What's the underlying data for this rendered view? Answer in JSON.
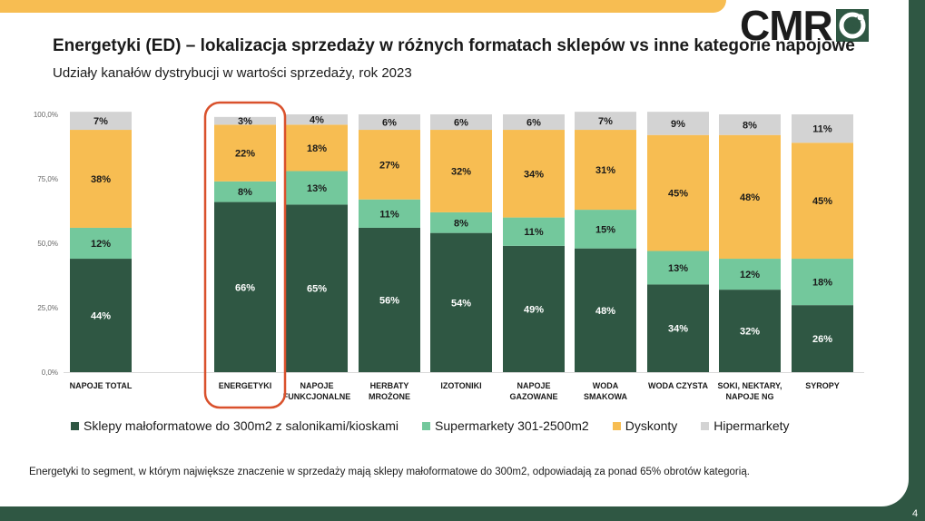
{
  "header": {
    "title": "Energetyki (ED) – lokalizacja sprzedaży w różnych formatach sklepów vs inne kategorie napojowe",
    "subtitle": "Udziały kanałów dystrybucji w wartości sprzedaży, rok 2023"
  },
  "logo": {
    "text": "CMR"
  },
  "chart_data": {
    "type": "bar",
    "stacked": true,
    "percent": true,
    "categories": [
      "NAPOJE TOTAL",
      "ENERGETYKI",
      "NAPOJE FUNKCJONALNE",
      "HERBATY MROŻONE",
      "IZOTONIKI",
      "NAPOJE GAZOWANE",
      "WODA SMAKOWA",
      "WODA CZYSTA",
      "SOKI, NEKTARY, NAPOJE NG",
      "SYROPY"
    ],
    "category_lines": [
      [
        "NAPOJE TOTAL"
      ],
      [
        "ENERGETYKI"
      ],
      [
        "NAPOJE",
        "FUNKCJONALNE"
      ],
      [
        "HERBATY",
        "MROŻONE"
      ],
      [
        "IZOTONIKI"
      ],
      [
        "NAPOJE",
        "GAZOWANE"
      ],
      [
        "WODA",
        "SMAKOWA"
      ],
      [
        "WODA CZYSTA"
      ],
      [
        "SOKI, NEKTARY,",
        "NAPOJE NG"
      ],
      [
        "SYROPY"
      ]
    ],
    "series": [
      {
        "name": "Sklepy małoformatowe do 300m2 z salonikami/kioskami",
        "color": "#2f5743",
        "label_color": "#ffffff",
        "values": [
          44,
          66,
          65,
          56,
          54,
          49,
          48,
          34,
          32,
          26
        ]
      },
      {
        "name": "Supermarkety 301-2500m2",
        "color": "#73c89c",
        "label_color": "#1a1a1a",
        "values": [
          12,
          8,
          13,
          11,
          8,
          11,
          15,
          13,
          12,
          18
        ]
      },
      {
        "name": "Dyskonty",
        "color": "#f7bd52",
        "label_color": "#1a1a1a",
        "values": [
          38,
          22,
          18,
          27,
          32,
          34,
          31,
          45,
          48,
          45
        ]
      },
      {
        "name": "Hipermarkety",
        "color": "#d3d3d3",
        "label_color": "#1a1a1a",
        "values": [
          7,
          3,
          4,
          6,
          6,
          6,
          7,
          9,
          8,
          11
        ]
      }
    ],
    "y_ticks": [
      "0,0%",
      "25,0%",
      "50,0%",
      "75,0%",
      "100,0%"
    ],
    "ylim": [
      0,
      100
    ],
    "highlight_category": "ENERGETYKI",
    "highlight_color": "#d9512c",
    "legend_position": "bottom"
  },
  "footnote": "Energetyki to segment, w którym największe znaczenie w sprzedaży mają sklepy małoformatowe do 300m2, odpowiadają za ponad 65% obrotów kategorią.",
  "page_number": "4"
}
